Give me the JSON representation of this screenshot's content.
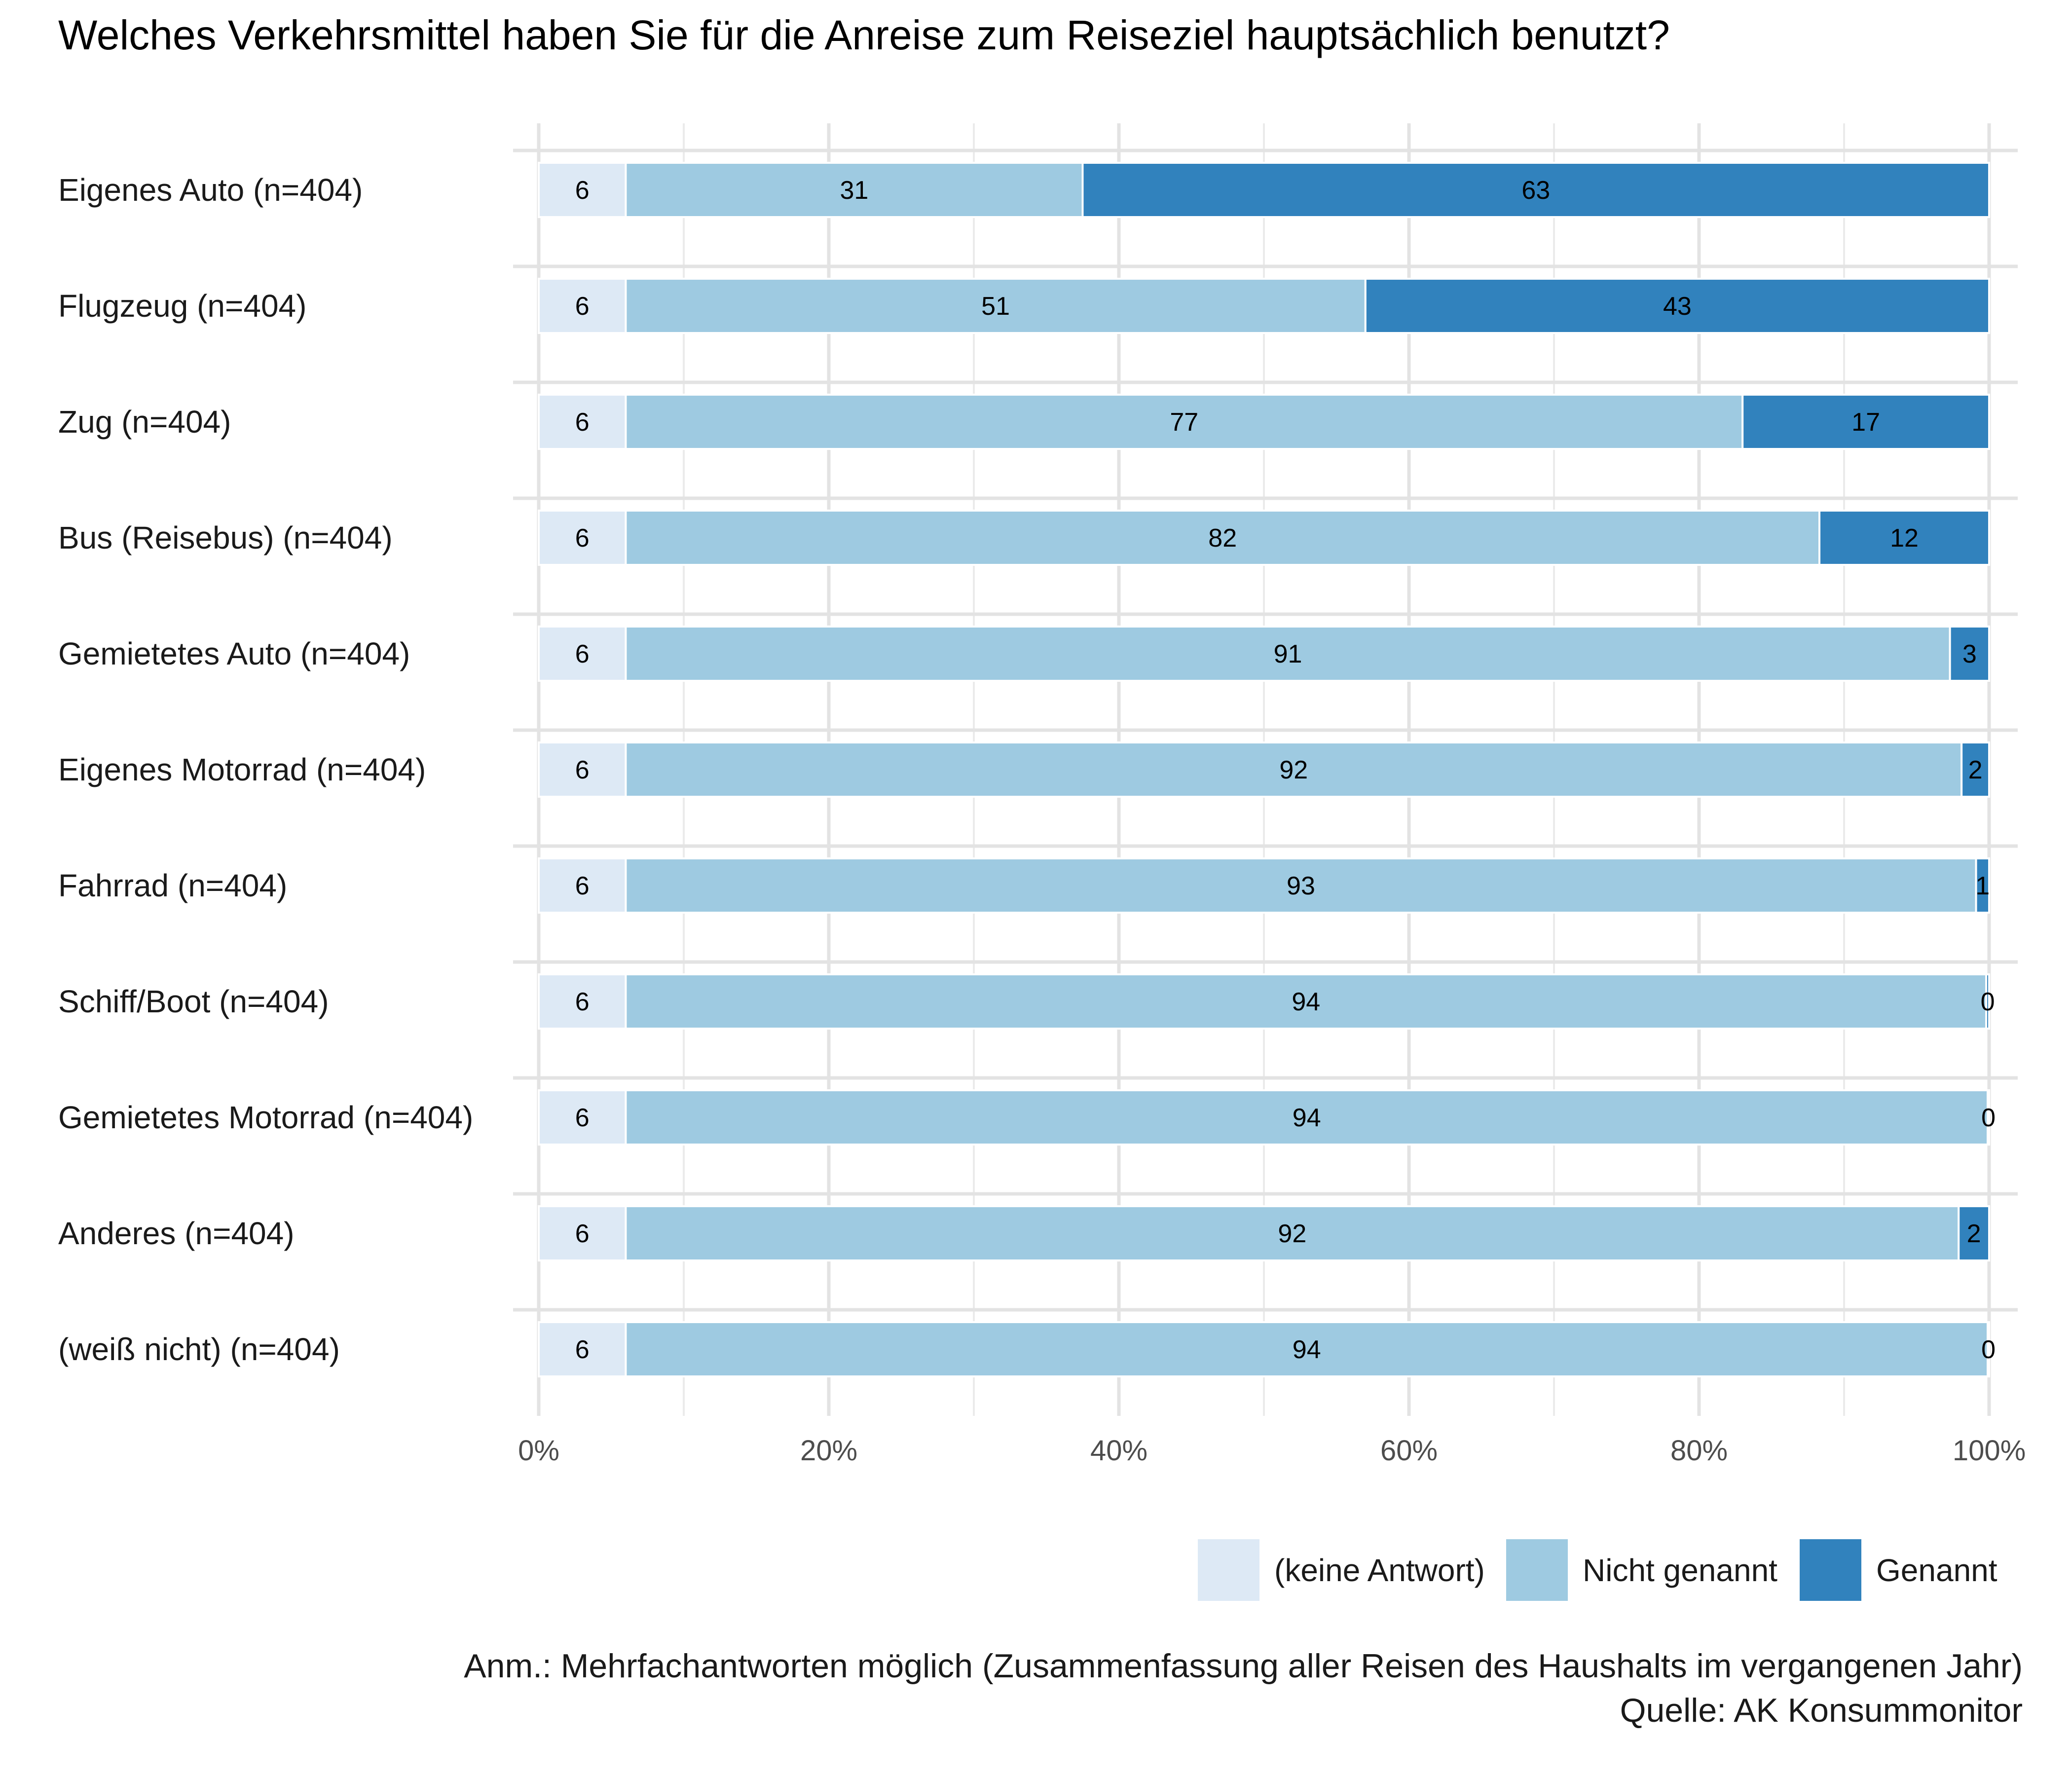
{
  "chart_data": {
    "type": "bar",
    "orientation": "horizontal",
    "stacked": true,
    "title": "Welches Verkehrsmittel haben Sie für die Anreise zum Reiseziel hauptsächlich benutzt?",
    "categories": [
      "Eigenes Auto (n=404)",
      "Flugzeug (n=404)",
      "Zug (n=404)",
      "Bus (Reisebus) (n=404)",
      "Gemietetes Auto (n=404)",
      "Eigenes Motorrad (n=404)",
      "Fahrrad (n=404)",
      "Schiff/Boot (n=404)",
      "Gemietetes Motorrad (n=404)",
      "Anderes (n=404)",
      "(weiß nicht) (n=404)"
    ],
    "series": [
      {
        "name": "(keine Antwort)",
        "color": "#dde9f5",
        "values": [
          6,
          6,
          6,
          6,
          6,
          6,
          6,
          6,
          6,
          6,
          6
        ],
        "labels": [
          "6",
          "6",
          "6",
          "6",
          "6",
          "6",
          "6",
          "6",
          "6",
          "6",
          "6"
        ]
      },
      {
        "name": "Nicht genannt",
        "color": "#9ecae1",
        "values": [
          31.5,
          51,
          77,
          82.3,
          91.3,
          92.1,
          93.1,
          93.8,
          93.9,
          91.9,
          93.9
        ],
        "labels": [
          "31",
          "51",
          "77",
          "82",
          "91",
          "92",
          "93",
          "94",
          "94",
          "92",
          "94"
        ]
      },
      {
        "name": "Genannt",
        "color": "#3182bd",
        "values": [
          62.5,
          43,
          17,
          11.7,
          2.7,
          1.9,
          0.9,
          0.2,
          0.1,
          2.1,
          0.1
        ],
        "labels": [
          "63",
          "43",
          "17",
          "12",
          "3",
          "2",
          "1",
          "0",
          "0",
          "2",
          "0"
        ]
      }
    ],
    "xlim": [
      0,
      100
    ],
    "x_ticks": [
      0,
      20,
      40,
      60,
      80,
      100
    ],
    "x_tick_labels": [
      "0%",
      "20%",
      "40%",
      "60%",
      "80%",
      "100%"
    ],
    "xlabel": "",
    "ylabel": "",
    "grid": true,
    "legend_position": "bottom-right",
    "legend": [
      "(keine Antwort)",
      "Nicht genannt",
      "Genannt"
    ],
    "caption": [
      "Anm.: Mehrfachantworten möglich (Zusammenfassung aller Reisen des Haushalts im vergangenen Jahr)",
      "Quelle: AK Konsummonitor"
    ]
  }
}
